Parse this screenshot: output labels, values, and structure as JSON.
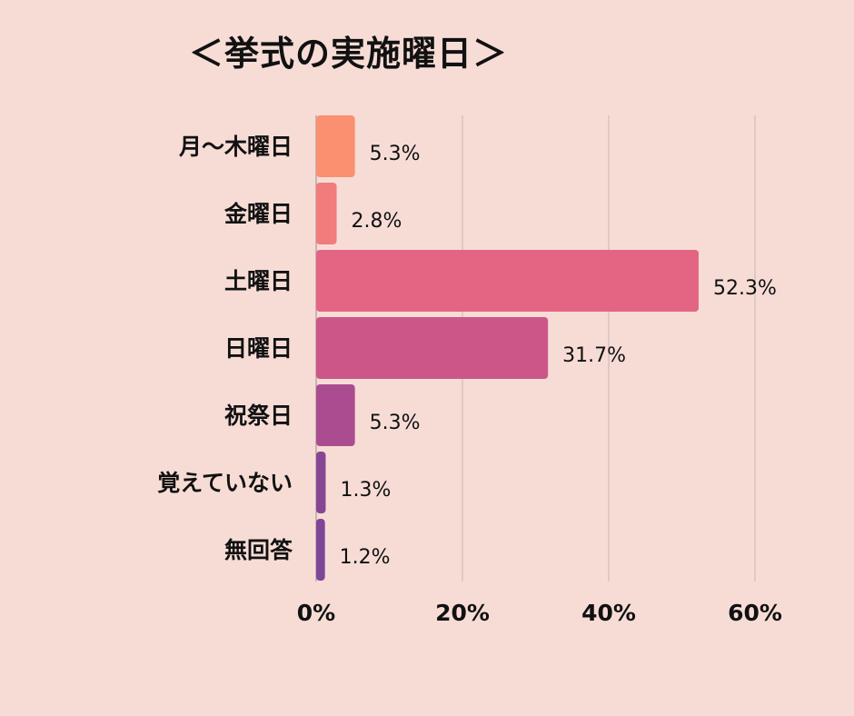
{
  "chart_data": {
    "type": "bar",
    "orientation": "horizontal",
    "title": "＜挙式の実施曜日＞",
    "categories": [
      "月～木曜日",
      "金曜日",
      "土曜日",
      "日曜日",
      "祝祭日",
      "覚えていない",
      "無回答"
    ],
    "values": [
      5.3,
      2.8,
      52.3,
      31.7,
      5.3,
      1.3,
      1.2
    ],
    "value_labels": [
      "5.3%",
      "2.8%",
      "52.3%",
      "31.7%",
      "5.3%",
      "1.3%",
      "1.2%"
    ],
    "bar_colors": [
      "#fb9070",
      "#f07c7c",
      "#e46583",
      "#cc5688",
      "#aa4c8f",
      "#864694",
      "#7d4696"
    ],
    "xlim": [
      0,
      60
    ],
    "x_ticks": [
      0,
      20,
      40,
      60
    ],
    "x_tick_labels": [
      "0%",
      "20%",
      "40%",
      "60%"
    ],
    "grid": true,
    "legend": "none"
  }
}
